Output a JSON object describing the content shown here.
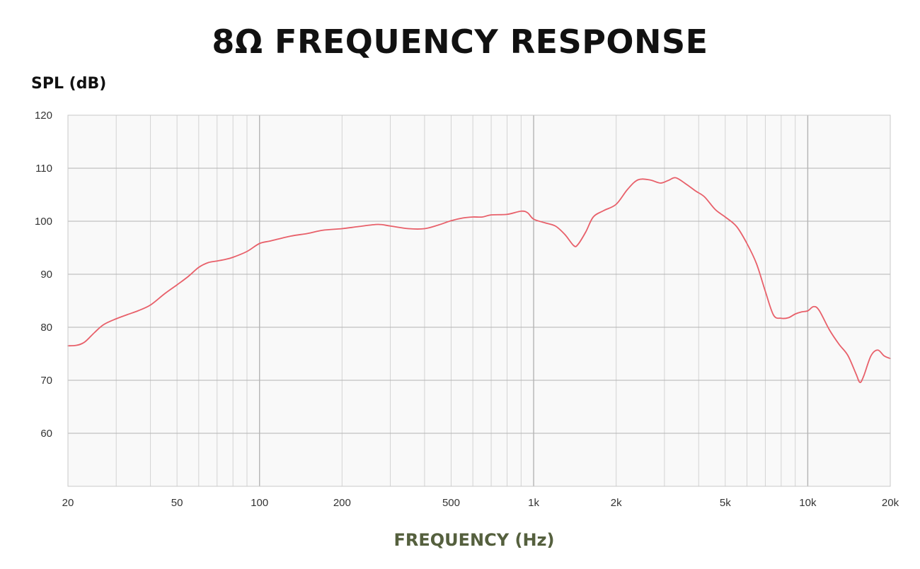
{
  "chart_data": {
    "type": "line",
    "title": "8Ω FREQUENCY RESPONSE",
    "ylabel": "SPL (dB)",
    "xlabel": "FREQUENCY (Hz)",
    "x_scale": "log",
    "xlim": [
      20,
      20000
    ],
    "ylim": [
      50,
      120
    ],
    "grid": true,
    "y_ticks": [
      {
        "value": 120,
        "label": "120"
      },
      {
        "value": 110,
        "label": "110"
      },
      {
        "value": 100,
        "label": "100"
      },
      {
        "value": 90,
        "label": "90"
      },
      {
        "value": 80,
        "label": "80"
      },
      {
        "value": 70,
        "label": "70"
      },
      {
        "value": 60,
        "label": "60"
      }
    ],
    "x_ticks": [
      {
        "value": 20,
        "label": "20"
      },
      {
        "value": 50,
        "label": "50"
      },
      {
        "value": 100,
        "label": "100"
      },
      {
        "value": 200,
        "label": "200"
      },
      {
        "value": 500,
        "label": "500"
      },
      {
        "value": 1000,
        "label": "1k"
      },
      {
        "value": 2000,
        "label": "2k"
      },
      {
        "value": 5000,
        "label": "5k"
      },
      {
        "value": 10000,
        "label": "10k"
      },
      {
        "value": 20000,
        "label": "20k"
      }
    ],
    "series": [
      {
        "color": "#e8606a",
        "points": [
          [
            20,
            76.5
          ],
          [
            21.5,
            76.6
          ],
          [
            23,
            77.2
          ],
          [
            25,
            79.0
          ],
          [
            27,
            80.5
          ],
          [
            30,
            81.6
          ],
          [
            33,
            82.4
          ],
          [
            36,
            83.1
          ],
          [
            40,
            84.2
          ],
          [
            45,
            86.3
          ],
          [
            50,
            88.0
          ],
          [
            55,
            89.6
          ],
          [
            60,
            91.3
          ],
          [
            65,
            92.2
          ],
          [
            70,
            92.5
          ],
          [
            75,
            92.8
          ],
          [
            80,
            93.2
          ],
          [
            90,
            94.3
          ],
          [
            100,
            95.8
          ],
          [
            110,
            96.3
          ],
          [
            130,
            97.2
          ],
          [
            150,
            97.7
          ],
          [
            170,
            98.3
          ],
          [
            200,
            98.6
          ],
          [
            230,
            99.0
          ],
          [
            270,
            99.4
          ],
          [
            300,
            99.1
          ],
          [
            350,
            98.6
          ],
          [
            400,
            98.6
          ],
          [
            450,
            99.3
          ],
          [
            500,
            100.1
          ],
          [
            550,
            100.6
          ],
          [
            600,
            100.8
          ],
          [
            650,
            100.8
          ],
          [
            700,
            101.2
          ],
          [
            800,
            101.3
          ],
          [
            900,
            101.9
          ],
          [
            950,
            101.6
          ],
          [
            1000,
            100.4
          ],
          [
            1100,
            99.7
          ],
          [
            1200,
            99.1
          ],
          [
            1300,
            97.5
          ],
          [
            1400,
            95.4
          ],
          [
            1450,
            95.6
          ],
          [
            1550,
            98.0
          ],
          [
            1650,
            100.8
          ],
          [
            1800,
            102.0
          ],
          [
            2000,
            103.2
          ],
          [
            2200,
            106.0
          ],
          [
            2400,
            107.8
          ],
          [
            2650,
            107.8
          ],
          [
            2900,
            107.2
          ],
          [
            3100,
            107.7
          ],
          [
            3300,
            108.2
          ],
          [
            3600,
            107.0
          ],
          [
            3900,
            105.7
          ],
          [
            4200,
            104.6
          ],
          [
            4600,
            102.2
          ],
          [
            5000,
            100.8
          ],
          [
            5500,
            99.0
          ],
          [
            6000,
            95.8
          ],
          [
            6500,
            92.0
          ],
          [
            7000,
            86.8
          ],
          [
            7500,
            82.3
          ],
          [
            8000,
            81.7
          ],
          [
            8500,
            81.8
          ],
          [
            9000,
            82.5
          ],
          [
            9500,
            82.9
          ],
          [
            10000,
            83.1
          ],
          [
            10500,
            83.9
          ],
          [
            11000,
            83.2
          ],
          [
            12000,
            79.5
          ],
          [
            13000,
            76.8
          ],
          [
            14000,
            74.7
          ],
          [
            15000,
            71.2
          ],
          [
            15500,
            69.6
          ],
          [
            16000,
            70.8
          ],
          [
            17000,
            74.6
          ],
          [
            18000,
            75.7
          ],
          [
            19000,
            74.6
          ],
          [
            20000,
            74.1
          ]
        ]
      }
    ]
  },
  "colors": {
    "title": "#111111",
    "xlabel": "#55603e",
    "grid_major": "#b4b4b4",
    "grid_minor": "#d3d3d3",
    "line": "#e8606a"
  }
}
